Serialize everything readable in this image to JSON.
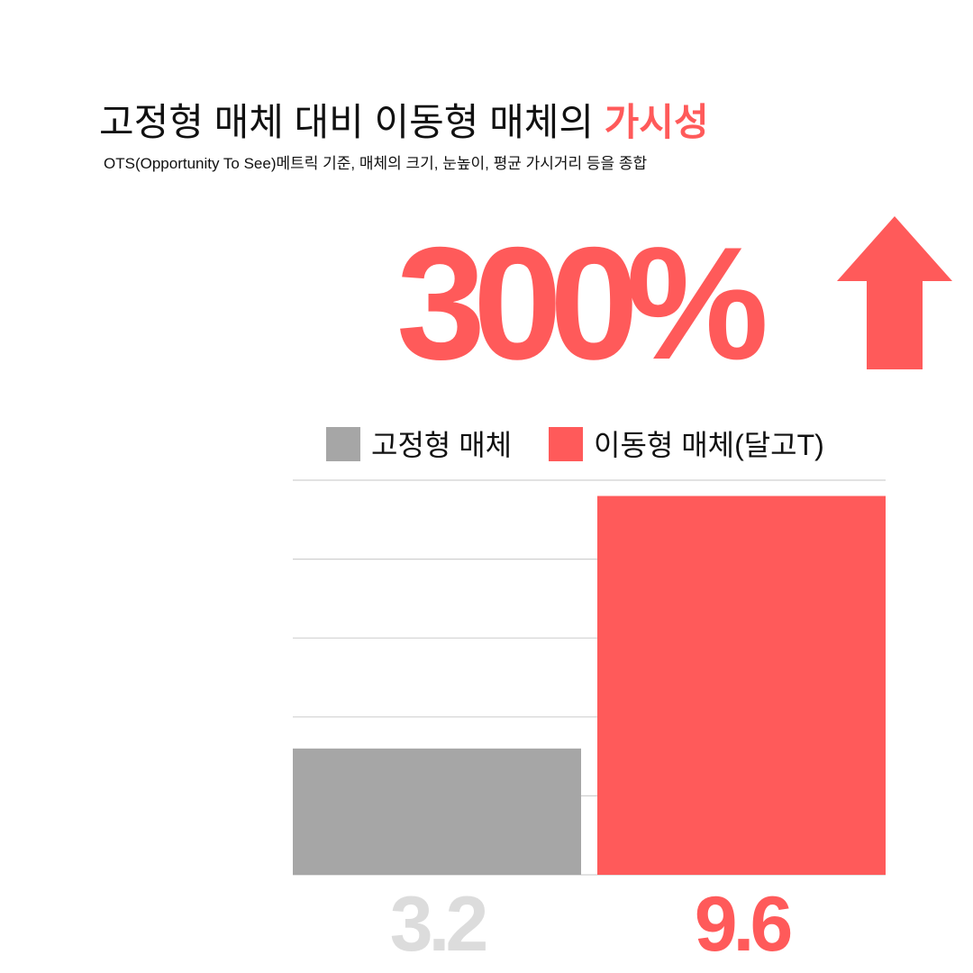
{
  "chart_data": {
    "type": "bar",
    "title": "고정형 매체 대비 이동형 매체의",
    "title_highlight": "가시성",
    "subtitle": "OTS(Opportunity To See)메트릭 기준, 매체의 크기, 눈높이, 평균 가시거리 등을 종합",
    "annotation": "300%",
    "accent_color": "#ff5a5a",
    "series": [
      {
        "name": "고정형 매체",
        "color": "#a6a6a6",
        "label_color": "#dcdcdc",
        "values": [
          3.2
        ]
      },
      {
        "name": "이동형 매체(달고T)",
        "color": "#ff5a5a",
        "label_color": "#ff5a5a",
        "values": [
          9.6
        ]
      }
    ],
    "ylim": [
      0,
      10
    ],
    "yticks": [
      0,
      2,
      4,
      6,
      8,
      10
    ],
    "grid": true
  }
}
